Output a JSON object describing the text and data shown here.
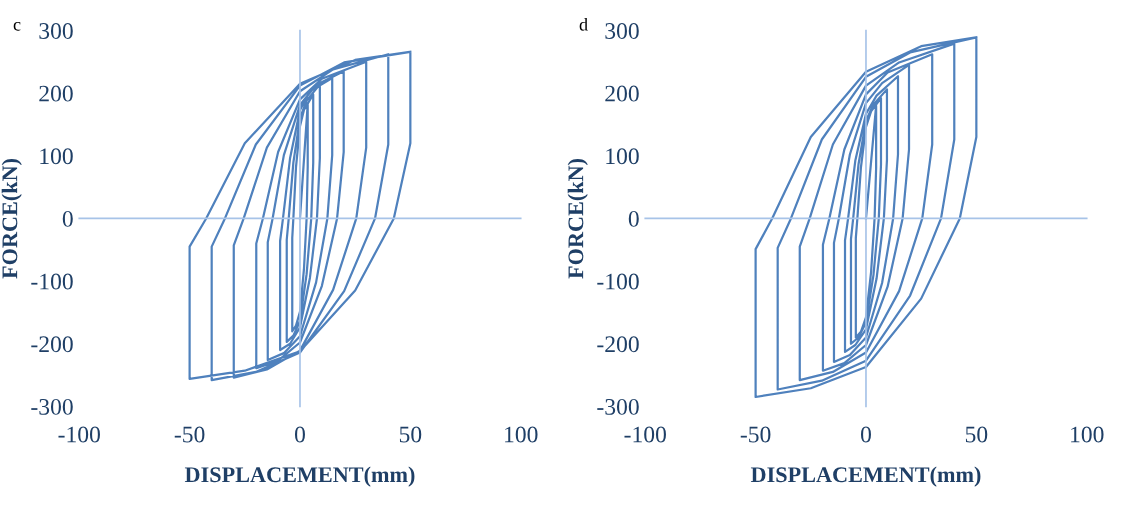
{
  "chart_data": [
    {
      "type": "line",
      "annotations": [
        "c"
      ],
      "xlabel": "DISPLACEMENT(mm)",
      "ylabel": "FORCE(kN)",
      "xlim": [
        -100,
        100
      ],
      "ylim": [
        -300,
        300
      ],
      "xticks": [
        -100,
        -50,
        0,
        50,
        100
      ],
      "yticks": [
        -300,
        -200,
        -100,
        0,
        100,
        200,
        300
      ],
      "series": [
        {
          "color": "#4f81bd",
          "x": [
            0,
            3.5,
            3.5,
            3,
            1.8,
            0,
            -1.8,
            -3.5,
            -3.5,
            -3,
            -1.8,
            0,
            1.8,
            6,
            6,
            5.1,
            3,
            0,
            -3,
            -6,
            -6,
            -5.1,
            -3,
            0,
            3,
            9,
            9,
            7.7,
            4.5,
            0,
            -4.5,
            -9,
            -9,
            -7.7,
            -4.5,
            0,
            4.5,
            14.6,
            14.6,
            12.4,
            7.3,
            0,
            -7.3,
            -14.6,
            -14.6,
            -12.4,
            -7.3,
            0,
            7.3,
            19.8,
            19.8,
            16.8,
            9.9,
            0,
            -9.9,
            -19.8,
            -19.8,
            -16.8,
            -9.9,
            0,
            9.9,
            30,
            30,
            25.5,
            15,
            0,
            -15,
            -30,
            -30,
            -25.5,
            -15,
            0,
            15,
            40,
            40,
            34,
            20,
            0,
            -20,
            -40,
            -40,
            -34,
            -20,
            0,
            20,
            50,
            50,
            42.5,
            25,
            0,
            -25,
            -50,
            -50,
            -42.5,
            -25,
            0,
            25,
            50
          ],
          "values": [
            0,
            182,
            82,
            0,
            -81,
            -149,
            -171,
            -180,
            -31,
            0,
            82,
            147,
            173,
            198,
            89,
            0,
            -89,
            -164,
            -187,
            -197,
            -34,
            0,
            89,
            160,
            188,
            214,
            96,
            0,
            -95,
            -174,
            -200,
            -210,
            -36,
            0,
            96,
            173,
            203,
            224,
            101,
            0,
            -102,
            -188,
            -215,
            -226,
            -38,
            0,
            101,
            181,
            213,
            235,
            106,
            0,
            -108,
            -198,
            -227,
            -239,
            -40,
            0,
            106,
            190,
            223,
            250,
            113,
            0,
            -114,
            -211,
            -241,
            -254,
            -43,
            0,
            113,
            203,
            238,
            262,
            118,
            0,
            -116,
            -214,
            -245,
            -258,
            -45,
            0,
            118,
            212,
            249,
            266,
            120,
            0,
            -115,
            -212,
            -243,
            -256,
            -45,
            0,
            120,
            215,
            253,
            266
          ]
        }
      ]
    },
    {
      "type": "line",
      "annotations": [
        "d"
      ],
      "xlabel": "DISPLACEMENT(mm)",
      "ylabel": "FORCE(kN)",
      "xlim": [
        -100,
        100
      ],
      "ylim": [
        -300,
        300
      ],
      "xticks": [
        -100,
        -50,
        0,
        50,
        100
      ],
      "yticks": [
        -300,
        -200,
        -100,
        0,
        100,
        200,
        300
      ],
      "series": [
        {
          "color": "#4f81bd",
          "x": [
            0,
            4.6,
            4.6,
            3.9,
            2.3,
            0,
            -2.3,
            -4.6,
            -4.6,
            -3.9,
            -2.3,
            0,
            2.3,
            6.8,
            6.8,
            5.8,
            3.4,
            0,
            -3.4,
            -6.8,
            -6.8,
            -5.8,
            -3.4,
            0,
            3.4,
            9.5,
            9.5,
            8.1,
            4.8,
            0,
            -4.8,
            -9.5,
            -9.5,
            -8.1,
            -4.8,
            0,
            4.8,
            14.5,
            14.5,
            12.3,
            7.3,
            0,
            -7.3,
            -14.5,
            -14.5,
            -12.3,
            -7.3,
            0,
            7.3,
            19.5,
            19.5,
            16.6,
            9.8,
            0,
            -9.8,
            -19.5,
            -19.5,
            -16.6,
            -9.8,
            0,
            9.8,
            30,
            30,
            25.5,
            15,
            0,
            -15,
            -30,
            -30,
            -25.5,
            -15,
            0,
            15,
            40,
            40,
            34,
            20,
            0,
            -20,
            -40,
            -40,
            -34,
            -20,
            0,
            20,
            50,
            50,
            42.5,
            25,
            0,
            -25,
            -50,
            -50,
            -42.5,
            -25,
            0,
            25,
            50
          ],
          "values": [
            0,
            180,
            81,
            0,
            -86,
            -158,
            -181,
            -190,
            -31,
            0,
            81,
            146,
            171,
            192,
            86,
            0,
            -90,
            -166,
            -190,
            -200,
            -33,
            0,
            86,
            156,
            182,
            206,
            93,
            0,
            -96,
            -177,
            -202,
            -213,
            -35,
            0,
            93,
            167,
            196,
            227,
            102,
            0,
            -103,
            -190,
            -218,
            -229,
            -39,
            0,
            102,
            184,
            216,
            245,
            110,
            0,
            -109,
            -202,
            -231,
            -243,
            -42,
            0,
            110,
            198,
            233,
            262,
            118,
            0,
            -116,
            -214,
            -245,
            -258,
            -45,
            0,
            118,
            212,
            249,
            279,
            126,
            0,
            -123,
            -227,
            -259,
            -273,
            -47,
            0,
            126,
            226,
            265,
            289,
            130,
            0,
            -128,
            -237,
            -271,
            -285,
            -49,
            0,
            130,
            234,
            275,
            289
          ]
        }
      ]
    }
  ]
}
